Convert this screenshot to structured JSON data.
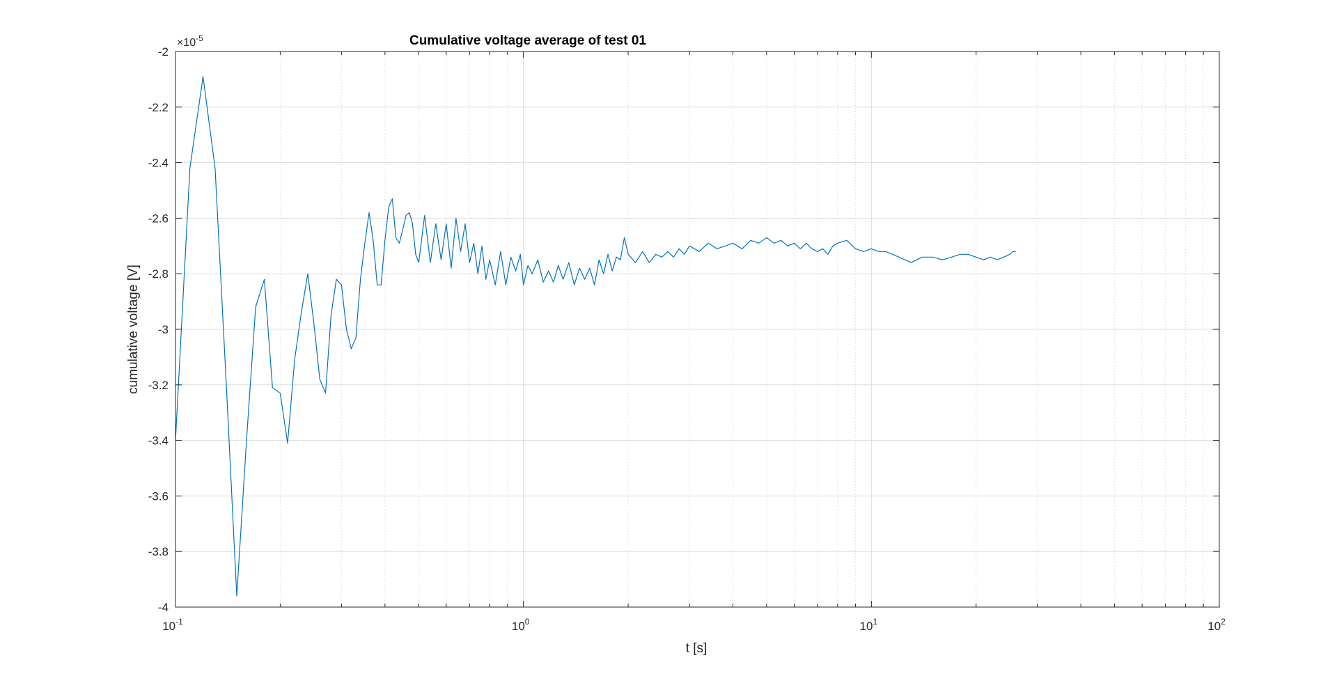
{
  "chart_data": {
    "type": "line",
    "title": "Cumulative voltage average of test 01",
    "xlabel": "t [s]",
    "ylabel": "cumulative voltage [V]",
    "x_scale": "log",
    "xlim": [
      0.1,
      100
    ],
    "ylim": [
      -4e-05,
      -2e-05
    ],
    "y_exponent_label": "×10",
    "y_exponent_power": "-5",
    "grid": true,
    "minor_grid_x": true,
    "x_ticks": [
      {
        "value": 0.1,
        "base": "10",
        "power": "-1"
      },
      {
        "value": 1,
        "base": "10",
        "power": "0"
      },
      {
        "value": 10,
        "base": "10",
        "power": "1"
      },
      {
        "value": 100,
        "base": "10",
        "power": "2"
      }
    ],
    "y_ticks": [
      {
        "value": -4e-05,
        "label": "-4"
      },
      {
        "value": -3.8e-05,
        "label": "-3.8"
      },
      {
        "value": -3.6e-05,
        "label": "-3.6"
      },
      {
        "value": -3.4e-05,
        "label": "-3.4"
      },
      {
        "value": -3.2e-05,
        "label": "-3.2"
      },
      {
        "value": -3e-05,
        "label": "-3"
      },
      {
        "value": -2.8e-05,
        "label": "-2.8"
      },
      {
        "value": -2.6e-05,
        "label": "-2.6"
      },
      {
        "value": -2.4e-05,
        "label": "-2.4"
      },
      {
        "value": -2.2e-05,
        "label": "-2.2"
      },
      {
        "value": -2e-05,
        "label": "-2"
      }
    ],
    "line_color": "#0072bd",
    "series": [
      {
        "x": [
          0.1,
          0.11,
          0.12,
          0.13,
          0.14,
          0.15,
          0.16,
          0.17,
          0.18,
          0.19,
          0.2,
          0.21,
          0.22,
          0.23,
          0.24,
          0.25,
          0.26,
          0.27,
          0.28,
          0.29,
          0.3,
          0.31,
          0.32,
          0.33,
          0.34,
          0.35,
          0.36,
          0.37,
          0.38,
          0.39,
          0.4,
          0.41,
          0.42,
          0.43,
          0.44,
          0.45,
          0.46,
          0.47,
          0.48,
          0.49,
          0.5,
          0.52,
          0.54,
          0.56,
          0.58,
          0.6,
          0.62,
          0.64,
          0.66,
          0.68,
          0.7,
          0.72,
          0.74,
          0.76,
          0.78,
          0.8,
          0.83,
          0.86,
          0.89,
          0.92,
          0.95,
          0.98,
          1.0,
          1.03,
          1.06,
          1.1,
          1.14,
          1.18,
          1.22,
          1.26,
          1.3,
          1.35,
          1.4,
          1.45,
          1.5,
          1.55,
          1.6,
          1.65,
          1.7,
          1.75,
          1.8,
          1.85,
          1.9,
          1.95,
          2.0,
          2.1,
          2.2,
          2.3,
          2.4,
          2.5,
          2.6,
          2.7,
          2.8,
          2.9,
          3.0,
          3.2,
          3.4,
          3.6,
          3.8,
          4.0,
          4.25,
          4.5,
          4.75,
          5.0,
          5.25,
          5.5,
          5.75,
          6.0,
          6.25,
          6.5,
          6.75,
          7.0,
          7.25,
          7.5,
          7.75,
          8.0,
          8.5,
          9.0,
          9.5,
          10.0,
          10.5,
          11.0,
          11.5,
          12.0,
          12.5,
          13.0,
          14.0,
          15.0,
          16.0,
          17.0,
          18.0,
          19.0,
          20.0,
          21.0,
          22.0,
          23.0,
          24.0,
          25.0,
          25.5,
          26.0
        ],
        "y": [
          -3.4,
          -2.42,
          -2.09,
          -2.42,
          -3.2,
          -3.96,
          -3.4,
          -2.92,
          -2.82,
          -3.21,
          -3.23,
          -3.41,
          -3.11,
          -2.94,
          -2.8,
          -2.98,
          -3.18,
          -3.23,
          -2.95,
          -2.82,
          -2.84,
          -3.0,
          -3.07,
          -3.03,
          -2.82,
          -2.69,
          -2.58,
          -2.68,
          -2.84,
          -2.84,
          -2.68,
          -2.56,
          -2.53,
          -2.67,
          -2.69,
          -2.64,
          -2.59,
          -2.58,
          -2.62,
          -2.73,
          -2.76,
          -2.59,
          -2.76,
          -2.62,
          -2.75,
          -2.62,
          -2.78,
          -2.6,
          -2.72,
          -2.62,
          -2.76,
          -2.69,
          -2.8,
          -2.7,
          -2.82,
          -2.75,
          -2.84,
          -2.72,
          -2.84,
          -2.74,
          -2.79,
          -2.73,
          -2.84,
          -2.77,
          -2.8,
          -2.75,
          -2.83,
          -2.79,
          -2.83,
          -2.77,
          -2.82,
          -2.76,
          -2.84,
          -2.78,
          -2.82,
          -2.78,
          -2.84,
          -2.75,
          -2.8,
          -2.73,
          -2.79,
          -2.74,
          -2.75,
          -2.67,
          -2.73,
          -2.76,
          -2.72,
          -2.76,
          -2.73,
          -2.74,
          -2.72,
          -2.74,
          -2.71,
          -2.73,
          -2.7,
          -2.72,
          -2.69,
          -2.71,
          -2.7,
          -2.69,
          -2.71,
          -2.68,
          -2.69,
          -2.67,
          -2.69,
          -2.68,
          -2.7,
          -2.69,
          -2.71,
          -2.69,
          -2.71,
          -2.72,
          -2.71,
          -2.73,
          -2.7,
          -2.69,
          -2.68,
          -2.71,
          -2.72,
          -2.71,
          -2.72,
          -2.72,
          -2.73,
          -2.74,
          -2.75,
          -2.76,
          -2.74,
          -2.74,
          -2.75,
          -2.74,
          -2.73,
          -2.73,
          -2.74,
          -2.75,
          -2.74,
          -2.75,
          -2.74,
          -2.73,
          -2.72,
          -2.72
        ]
      }
    ]
  }
}
